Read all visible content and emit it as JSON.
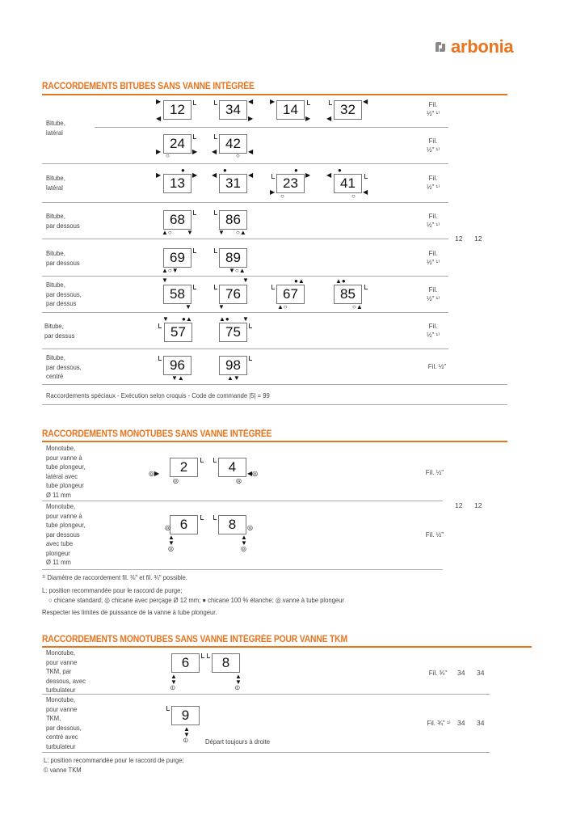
{
  "logo": {
    "text": "arbonia",
    "color": "#e8741e",
    "icon": "arbonia-logo-icon"
  },
  "accent_color": "#e8741e",
  "section1": {
    "title": "RACCORDEMENTS BITUBES SANS VANNE INTÉGRÉE",
    "rows": [
      {
        "label": "Bitube,\nlatéral",
        "codes": [
          "12",
          "34",
          "14",
          "32"
        ],
        "fil": "Fil.\n½\" ¹⁾"
      },
      {
        "label": "",
        "codes": [
          "24",
          "42"
        ],
        "fil": "Fil.\n½\" ¹⁾"
      },
      {
        "label": "Bitube,\nlatéral",
        "codes": [
          "13",
          "31",
          "23",
          "41"
        ],
        "fil": "Fil.\n½\" ¹⁾"
      },
      {
        "label": "Bitube,\npar dessous",
        "codes": [
          "68",
          "86"
        ],
        "fil": "Fil.\n½\" ¹⁾"
      },
      {
        "label": "Bitube,\npar dessous",
        "codes": [
          "69",
          "89"
        ],
        "fil": "Fil.\n½\" ¹⁾"
      },
      {
        "label": "Bitube,\npar dessous,\npar dessus",
        "codes": [
          "58",
          "76",
          "67",
          "85"
        ],
        "fil": "Fil.\n½\" ¹⁾"
      },
      {
        "label": "Bitube,\npar dessus",
        "codes": [
          "57",
          "75"
        ],
        "fil": "Fil.\n½\" ¹⁾"
      },
      {
        "label": "Bitube,\npar dessous,\ncentré",
        "codes": [
          "96",
          "98"
        ],
        "fil": "Fil. ½\""
      }
    ],
    "col_a": "12",
    "col_b": "12",
    "special": "Raccordements spéciaux - Exécution selon croquis - Code de commande |5| = 99"
  },
  "section2": {
    "title": "RACCORDEMENTS MONOTUBES SANS VANNE INTÉGRÉE",
    "rows": [
      {
        "label": "Monotube,\npour vanne à\ntube plongeur,\nlatéral avec\ntube plongeur\nØ 11 mm",
        "codes": [
          "2",
          "4"
        ],
        "fil": "Fil. ½\""
      },
      {
        "label": "Monotube,\npour vanne à\ntube plongeur,\npar dessous\navec tube\nplongeur\nØ 11 mm",
        "codes": [
          "6",
          "8"
        ],
        "fil": "Fil. ½\""
      }
    ],
    "col_a": "12",
    "col_b": "12",
    "footnote": "¹⁾ Diamètre de raccordement fil. ⅜\" et fil. ¾\" possible.",
    "legend_line1": "L: position recommandée pour le raccord de purge;",
    "legend_items": [
      "chicane standard;",
      "chicane avec perçage Ø 12 mm;",
      "chicane 100 % étanche;",
      "vanne à tube plongeur"
    ],
    "note": "Respecter les limites de puissance de la vanne à tube plongeur."
  },
  "section3": {
    "title": "RACCORDEMENTS MONOTUBES SANS VANNE INTÉGRÉE POUR VANNE TKM",
    "rows": [
      {
        "label": "Monotube,\npour vanne\nTKM, par\ndessous, avec\nturbulateur",
        "codes": [
          "6",
          "8"
        ],
        "fil": "Fil. ¾\"",
        "col_a": "34",
        "col_b": "34"
      },
      {
        "label": "Monotube,\npour vanne\nTKM,\npar dessous,\ncentré avec\nturbulateur",
        "codes": [
          "9"
        ],
        "fil": "Fil. ¾\" ¹⁾",
        "col_a": "34",
        "col_b": "34",
        "note": "Départ toujours à droite"
      }
    ],
    "legend_line1": "L: position recommandée pour le raccord de purge;",
    "legend_item": "vanne TKM"
  }
}
